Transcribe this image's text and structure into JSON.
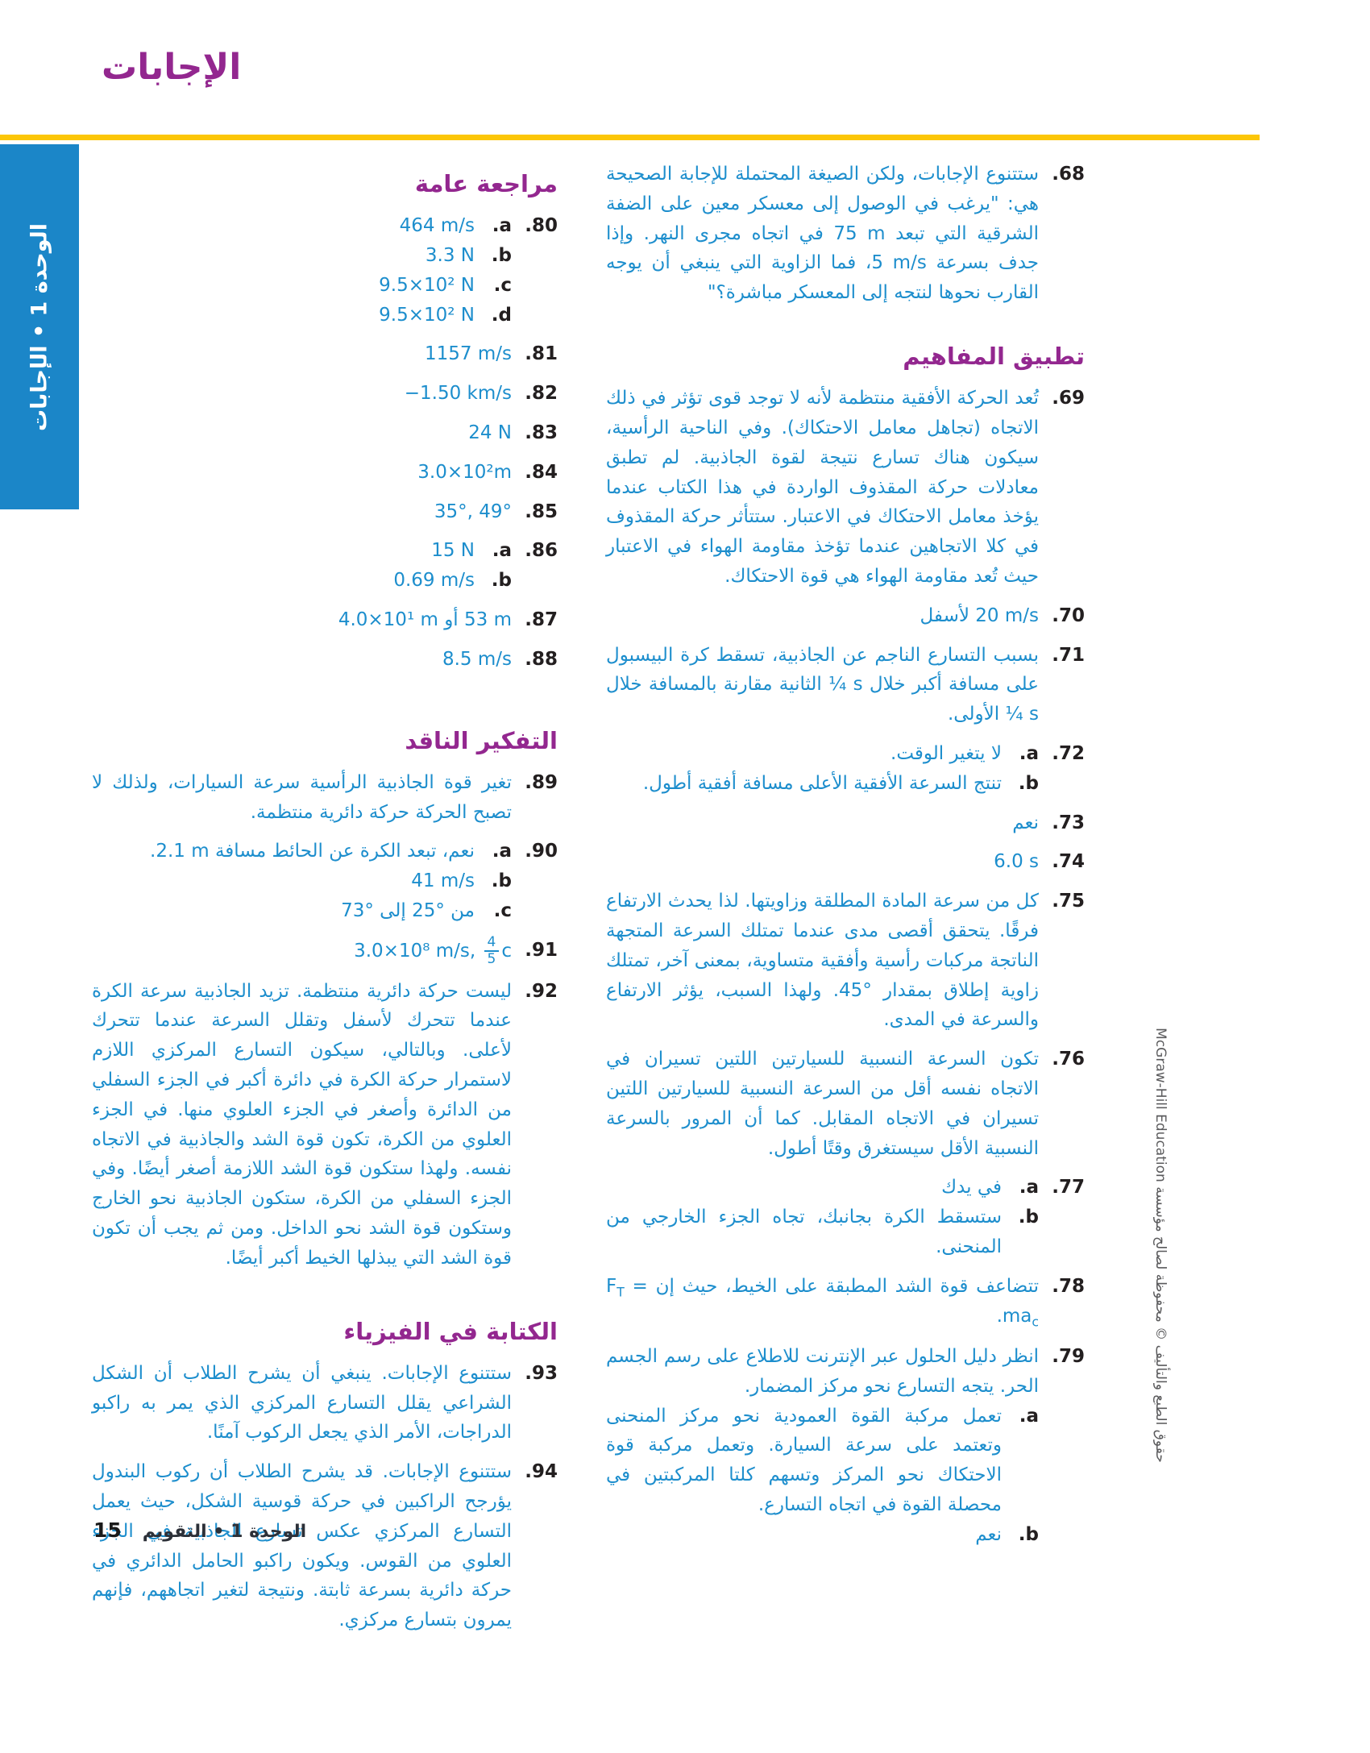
{
  "page": {
    "title": "الإجابات",
    "side_tab": "الوحدة 1 • الإجابات",
    "footer": {
      "page_number": "15",
      "label": "الوحدة 1 • التقويم"
    },
    "copyright": "حقوق الطبع والتأليف © محفوظة لصالح مؤسسة McGraw-Hill Education",
    "colors": {
      "accent_purple": "#93278f",
      "answer_blue": "#1d8ecd",
      "sidebar_blue": "#1b86c8",
      "rule_yellow": "#fcc608",
      "number_dark": "#231f20"
    }
  },
  "right_col": {
    "item68": {
      "num": "68.",
      "text": "ستتنوع الإجابات، ولكن الصيغة المحتملة للإجابة الصحيحة هي: \"يرغب في الوصول إلى معسكر معين على الضفة الشرقية التي تبعد ⁦75 m⁩ في اتجاه مجرى النهر. وإذا جدف بسرعة ⁦5 m/s⁩، فما الزاوية التي ينبغي أن يوجه القارب نحوها لنتجه إلى المعسكر مباشرة؟\""
    },
    "heading": "تطبيق المفاهيم",
    "item69": {
      "num": "69.",
      "text": "تُعد الحركة الأفقية منتظمة لأنه لا توجد قوى تؤثر في ذلك الاتجاه (تجاهل معامل الاحتكاك). وفي الناحية الرأسية، سيكون هناك تسارع نتيجة لقوة الجاذبية. لم تطبق معادلات حركة المقذوف الواردة في هذا الكتاب عندما يؤخذ معامل الاحتكاك في الاعتبار. ستتأثر حركة المقذوف في كلا الاتجاهين عندما تؤخذ مقاومة الهواء في الاعتبار حيث تُعد مقاومة الهواء هي قوة الاحتكاك."
    },
    "item70": {
      "num": "70.",
      "text": "⁦20 m/s⁩ لأسفل"
    },
    "item71": {
      "num": "71.",
      "text": "بسبب التسارع الناجم عن الجاذبية، تسقط كرة البيسبول على مسافة أكبر خلال ⁦¼ s⁩ الثانية مقارنة بالمسافة خلال ⁦¼ s⁩ الأولى."
    },
    "item72": {
      "num": "72.",
      "a_label": "a.",
      "a": "لا يتغير الوقت.",
      "b_label": "b.",
      "b": "تنتج السرعة الأفقية الأعلى مسافة أفقية أطول."
    },
    "item73": {
      "num": "73.",
      "text": "نعم"
    },
    "item74": {
      "num": "74.",
      "text": "⁦6.0 s⁩"
    },
    "item75": {
      "num": "75.",
      "text": "كل من سرعة المادة المطلقة وزاويتها. لذا يحدث الارتفاع فرقًا. يتحقق أقصى مدى عندما تمتلك السرعة المتجهة الناتجة مركبات رأسية وأفقية متساوية، بمعنى آخر، تمتلك زاوية إطلاق بمقدار °45. ولهذا السبب، يؤثر الارتفاع والسرعة في المدى."
    },
    "item76": {
      "num": "76.",
      "text": "تكون السرعة النسبية للسيارتين اللتين تسيران في الاتجاه نفسه أقل من السرعة النسبية للسيارتين اللتين تسيران في الاتجاه المقابل. كما أن المرور بالسرعة النسبية الأقل سيستغرق وقتًا أطول."
    },
    "item77": {
      "num": "77.",
      "a_label": "a.",
      "a": "في يدك",
      "b_label": "b.",
      "b": "ستسقط الكرة بجانبك، تجاه الجزء الخارجي من المنحنى."
    },
    "item78": {
      "num": "78.",
      "text": "تتضاعف قوة الشد المطبقة على الخيط، حيث إن",
      "f_base": "F",
      "f_sub": "T",
      "f_mid": " = ma",
      "f_sub2": "c",
      "dot": "."
    },
    "item79": {
      "num": "79.",
      "text": "انظر دليل الحلول عبر الإنترنت للاطلاع على رسم الجسم الحر. يتجه التسارع نحو مركز المضمار.",
      "a_label": "a.",
      "a": "تعمل مركبة القوة العمودية نحو مركز المنحنى وتعتمد على سرعة السيارة. وتعمل مركبة قوة الاحتكاك نحو المركز وتسهم كلتا المركبتين في محصلة القوة في اتجاه التسارع.",
      "b_label": "b.",
      "b": "نعم"
    }
  },
  "left_col": {
    "heading1": "مراجعة عامة",
    "item80": {
      "num": "80.",
      "a_label": "a.",
      "a": "⁦464 m/s⁩",
      "b_label": "b.",
      "b": "⁦3.3 N⁩",
      "c_label": "c.",
      "c": "⁦9.5×10² N⁩",
      "d_label": "d.",
      "d": "⁦9.5×10² N⁩"
    },
    "item81": {
      "num": "81.",
      "text": "⁦1157 m/s⁩"
    },
    "item82": {
      "num": "82.",
      "text": "⁦−1.50 km/s⁩"
    },
    "item83": {
      "num": "83.",
      "text": "⁦24 N⁩"
    },
    "item84": {
      "num": "84.",
      "text": "⁦3.0×10²m⁩"
    },
    "item85": {
      "num": "85.",
      "text": "⁦35°, 49°⁩"
    },
    "item86": {
      "num": "86.",
      "a_label": "a.",
      "a": "⁦15 N⁩",
      "b_label": "b.",
      "b": "⁦0.69 m/s⁩"
    },
    "item87": {
      "num": "87.",
      "text": "⁦53 m⁩ أو ⁦4.0×10¹ m⁩"
    },
    "item88": {
      "num": "88.",
      "text": "⁦8.5 m/s⁩"
    },
    "heading2": "التفكير الناقد",
    "item89": {
      "num": "89.",
      "text": "تغير قوة الجاذبية الرأسية سرعة السيارات، ولذلك لا تصبح الحركة حركة دائرية منتظمة."
    },
    "item90": {
      "num": "90.",
      "a_label": "a.",
      "a": "نعم، تبعد الكرة عن الحائط مسافة ⁦2.1 m⁩.",
      "b_label": "b.",
      "b": "⁦41 m/s⁩",
      "c_label": "c.",
      "c": "من °25 إلى °73"
    },
    "item91": {
      "num": "91.",
      "value_pre": "3.0×10⁸ m/s, ",
      "frac_num": "4",
      "frac_den": "5",
      "value_post": "c"
    },
    "item92": {
      "num": "92.",
      "text": "ليست حركة دائرية منتظمة. تزيد الجاذبية سرعة الكرة عندما تتحرك لأسفل وتقلل السرعة عندما تتحرك لأعلى. وبالتالي، سيكون التسارع المركزي اللازم لاستمرار حركة الكرة في دائرة أكبر في الجزء السفلي من الدائرة وأصغر في الجزء العلوي منها. في الجزء العلوي من الكرة، تكون قوة الشد والجاذبية في الاتجاه نفسه. ولهذا ستكون قوة الشد اللازمة أصغر أيضًا. وفي الجزء السفلي من الكرة، ستكون الجاذبية نحو الخارج وستكون قوة الشد نحو الداخل. ومن ثم يجب أن تكون قوة الشد التي يبذلها الخيط أكبر أيضًا."
    },
    "heading3": "الكتابة في الفيزياء",
    "item93": {
      "num": "93.",
      "text": "ستتنوع الإجابات. ينبغي أن يشرح الطلاب أن الشكل الشراعي يقلل التسارع المركزي الذي يمر به راكبو الدراجات، الأمر الذي يجعل الركوب آمنًا."
    },
    "item94": {
      "num": "94.",
      "text": "ستتنوع الإجابات. قد يشرح الطلاب أن ركوب البندول يؤرجح الراكبين في حركة قوسية الشكل، حيث يعمل التسارع المركزي عكس تسارع الجاذبية في الجزء العلوي من القوس. ويكون راكبو الحامل الدائري في حركة دائرية بسرعة ثابتة. ونتيجة لتغير اتجاههم، فإنهم يمرون بتسارع مركزي."
    }
  }
}
